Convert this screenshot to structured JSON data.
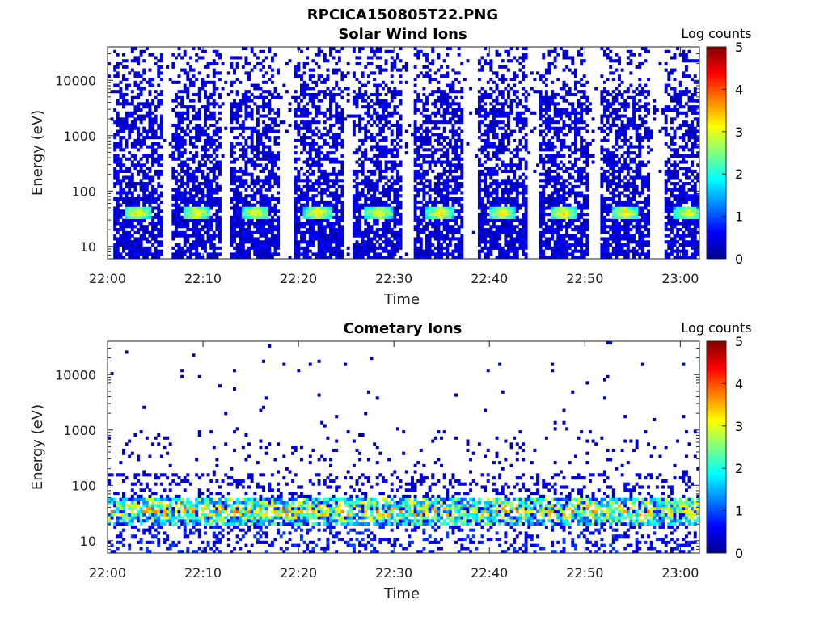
{
  "figure": {
    "title": "RPCICA150805T22.PNG"
  },
  "colors": {
    "colormap": [
      "#00008f",
      "#0000ff",
      "#0080ff",
      "#00ffff",
      "#80ff80",
      "#ffff00",
      "#ff8000",
      "#ff0000",
      "#800000"
    ],
    "background": "#ffffff"
  },
  "chart_data": [
    {
      "type": "heatmap",
      "title": "Solar Wind Ions",
      "xlabel": "Time",
      "ylabel": "Energy (eV)",
      "x_ticks": [
        "22:00",
        "22:10",
        "22:20",
        "22:30",
        "22:40",
        "22:50",
        "23:00"
      ],
      "x_tick_minutes": [
        0,
        10,
        20,
        30,
        40,
        50,
        60
      ],
      "xlim_minutes": [
        0,
        62
      ],
      "y_scale": "log",
      "y_ticks": [
        "10",
        "100",
        "1000",
        "10000"
      ],
      "y_tick_values": [
        10,
        100,
        1000,
        10000
      ],
      "ylim": [
        6,
        40000
      ],
      "colorbar": {
        "label": "Log counts",
        "ticks": [
          "0",
          "1",
          "2",
          "3",
          "4",
          "5"
        ],
        "range": [
          0,
          5
        ]
      },
      "sweep_centers_minutes": [
        3.1,
        9.3,
        15.5,
        22.0,
        28.4,
        34.8,
        41.3,
        47.8,
        54.2,
        60.8
      ],
      "peak_energy_ev": 40,
      "peak_log_counts": 3.0
    },
    {
      "type": "heatmap",
      "title": "Cometary Ions",
      "xlabel": "Time",
      "ylabel": "Energy (eV)",
      "x_ticks": [
        "22:00",
        "22:10",
        "22:20",
        "22:30",
        "22:40",
        "22:50",
        "23:00"
      ],
      "x_tick_minutes": [
        0,
        10,
        20,
        30,
        40,
        50,
        60
      ],
      "xlim_minutes": [
        0,
        62
      ],
      "y_scale": "log",
      "y_ticks": [
        "10",
        "100",
        "1000",
        "10000"
      ],
      "y_tick_values": [
        10,
        100,
        1000,
        10000
      ],
      "ylim": [
        6,
        40000
      ],
      "colorbar": {
        "label": "Log counts",
        "ticks": [
          "0",
          "1",
          "2",
          "3",
          "4",
          "5"
        ],
        "range": [
          0,
          5
        ]
      },
      "band_energy_ev": [
        20,
        60
      ],
      "peak_energy_ev": 35,
      "peak_log_counts": 4.0
    }
  ]
}
